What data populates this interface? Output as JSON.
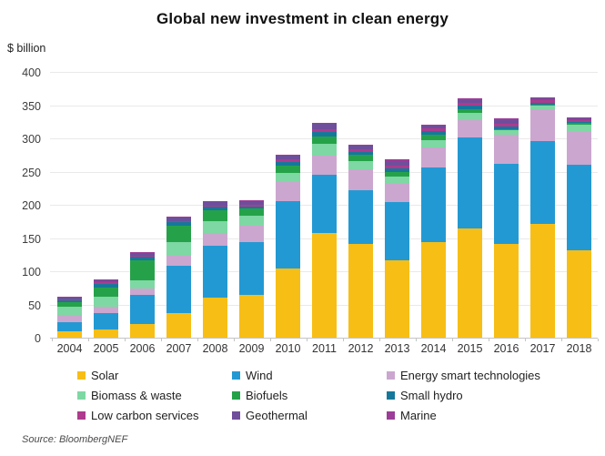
{
  "title": "Global new investment in clean energy",
  "y_axis_unit": "$ billion",
  "source": "Source: BloombergNEF",
  "chart_data": {
    "type": "bar",
    "stacked": true,
    "title": "Global new investment in clean energy",
    "xlabel": "",
    "ylabel": "$ billion",
    "ylim": [
      0,
      400
    ],
    "ytick_step": 50,
    "grid": "horizontal",
    "legend_position": "bottom",
    "categories": [
      "2004",
      "2005",
      "2006",
      "2007",
      "2008",
      "2009",
      "2010",
      "2011",
      "2012",
      "2013",
      "2014",
      "2015",
      "2016",
      "2017",
      "2018"
    ],
    "series": [
      {
        "name": "Solar",
        "color": "#F7BE16",
        "values": [
          9,
          12,
          21,
          37,
          60,
          64,
          104,
          157,
          141,
          116,
          144,
          165,
          141,
          171,
          132
        ]
      },
      {
        "name": "Wind",
        "color": "#2399D3",
        "values": [
          14,
          25,
          44,
          71,
          78,
          80,
          101,
          88,
          81,
          88,
          112,
          136,
          120,
          125,
          128
        ]
      },
      {
        "name": "Energy smart technologies",
        "color": "#CBA6CF",
        "values": [
          11,
          10,
          9,
          16,
          20,
          25,
          29,
          29,
          31,
          27,
          31,
          27,
          44,
          48,
          50
        ]
      },
      {
        "name": "Biomass & waste",
        "color": "#7ED8A3",
        "values": [
          13,
          15,
          12,
          20,
          18,
          14,
          14,
          18,
          13,
          11,
          11,
          10,
          7,
          5,
          10
        ]
      },
      {
        "name": "Biofuels",
        "color": "#25A249",
        "values": [
          6,
          14,
          31,
          25,
          16,
          11,
          11,
          11,
          9,
          8,
          7,
          6,
          2,
          2,
          3
        ]
      },
      {
        "name": "Small hydro",
        "color": "#15789B",
        "values": [
          3,
          5,
          5,
          5,
          5,
          4,
          6,
          7,
          5,
          5,
          6,
          5,
          4,
          3,
          2
        ]
      },
      {
        "name": "Low carbon services",
        "color": "#AE3B8D",
        "values": [
          2,
          2,
          2,
          2,
          2,
          2,
          3,
          4,
          3,
          4,
          4,
          4,
          4,
          4,
          3
        ]
      },
      {
        "name": "Geothermal",
        "color": "#6F4E9C",
        "values": [
          3,
          4,
          4,
          5,
          5,
          6,
          6,
          8,
          6,
          7,
          4,
          5,
          6,
          2,
          2
        ]
      },
      {
        "name": "Marine",
        "color": "#9C3D97",
        "values": [
          1,
          1,
          1,
          1,
          1,
          1,
          2,
          2,
          2,
          3,
          2,
          2,
          2,
          2,
          2
        ]
      }
    ],
    "totals": [
      62,
      88,
      129,
      182,
      205,
      207,
      276,
      324,
      291,
      269,
      321,
      360,
      330,
      362,
      332
    ]
  }
}
